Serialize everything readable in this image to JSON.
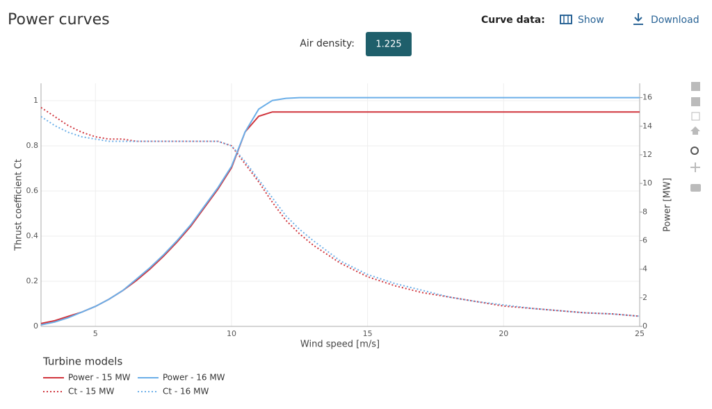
{
  "header": {
    "title": "Power curves",
    "curve_data_label": "Curve data:",
    "show": "Show",
    "download": "Download",
    "air_density_label": "Air density:",
    "air_density_value": "1.225"
  },
  "chart_data": {
    "type": "line",
    "x": [
      3,
      3.5,
      4,
      4.5,
      5,
      5.5,
      6,
      6.5,
      7,
      7.5,
      8,
      8.5,
      9,
      9.5,
      10,
      10.5,
      11,
      11.5,
      12,
      12.5,
      13,
      14,
      15,
      16,
      17,
      18,
      19,
      20,
      21,
      22,
      23,
      24,
      25
    ],
    "series": [
      {
        "name": "Power - 15 MW",
        "color": "#d0343c",
        "line_style": "solid",
        "axis": "y2",
        "values": [
          0.2,
          0.4,
          0.7,
          1.0,
          1.4,
          1.9,
          2.5,
          3.2,
          4.0,
          4.9,
          5.9,
          7.0,
          8.3,
          9.6,
          11.1,
          13.6,
          14.7,
          15.0,
          15.0,
          15.0,
          15.0,
          15.0,
          15.0,
          15.0,
          15.0,
          15.0,
          15.0,
          15.0,
          15.0,
          15.0,
          15.0,
          15.0,
          15.0
        ]
      },
      {
        "name": "Power - 16 MW",
        "color": "#6aaee8",
        "line_style": "solid",
        "axis": "y2",
        "values": [
          0.1,
          0.3,
          0.6,
          1.0,
          1.4,
          1.9,
          2.5,
          3.3,
          4.1,
          5.0,
          6.0,
          7.1,
          8.4,
          9.7,
          11.2,
          13.6,
          15.2,
          15.8,
          15.95,
          16,
          16,
          16,
          16,
          16,
          16,
          16,
          16,
          16,
          16,
          16,
          16,
          16,
          16
        ]
      },
      {
        "name": "Ct - 15 MW",
        "color": "#d0343c",
        "line_style": "dotted",
        "values": [
          0.97,
          0.93,
          0.89,
          0.86,
          0.84,
          0.83,
          0.83,
          0.82,
          0.82,
          0.82,
          0.82,
          0.82,
          0.82,
          0.82,
          0.8,
          0.72,
          0.64,
          0.55,
          0.47,
          0.41,
          0.36,
          0.28,
          0.22,
          0.18,
          0.15,
          0.13,
          0.11,
          0.09,
          0.08,
          0.07,
          0.06,
          0.055,
          0.045
        ]
      },
      {
        "name": "Ct - 16 MW",
        "color": "#6aaee8",
        "line_style": "dotted",
        "values": [
          0.93,
          0.89,
          0.86,
          0.84,
          0.83,
          0.82,
          0.82,
          0.82,
          0.82,
          0.82,
          0.82,
          0.82,
          0.82,
          0.82,
          0.8,
          0.73,
          0.65,
          0.57,
          0.49,
          0.43,
          0.38,
          0.29,
          0.23,
          0.19,
          0.16,
          0.13,
          0.11,
          0.095,
          0.08,
          0.07,
          0.06,
          0.055,
          0.045
        ]
      }
    ],
    "x_label": "Wind speed [m/s]",
    "y_label": "Thrust coefficient Ct",
    "y2_label": "Power [MW]",
    "xlim": [
      3,
      25
    ],
    "xticks": [
      5,
      10,
      15,
      20,
      25
    ],
    "ylim": [
      0,
      1.077
    ],
    "yticks": [
      0,
      0.2,
      0.4,
      0.6,
      0.8,
      1
    ],
    "y2lim": [
      0,
      17
    ],
    "y2ticks": [
      0,
      2,
      4,
      6,
      8,
      10,
      12,
      14,
      16
    ],
    "grid": true,
    "legend_title": "Turbine models",
    "legend_position": "bottom-left"
  }
}
